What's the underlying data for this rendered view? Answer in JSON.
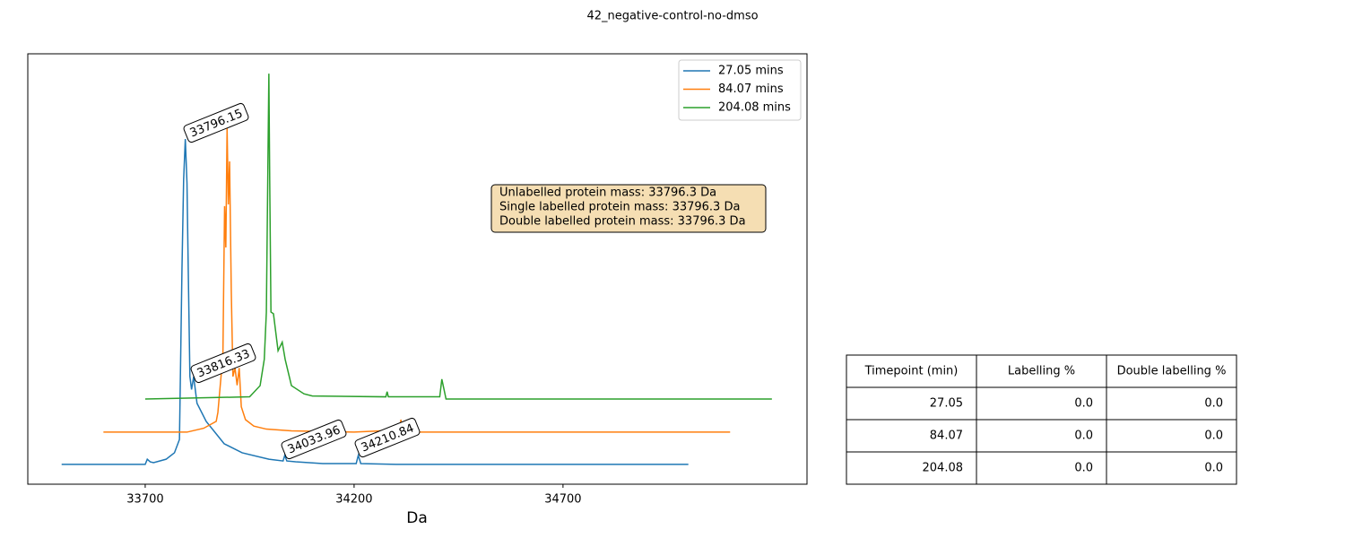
{
  "chart_data": {
    "type": "line",
    "title": "42_negative-control-no-dmso",
    "x_label": "Da",
    "xlim": [
      33419,
      35284
    ],
    "xticks": [
      33700,
      34200,
      34700
    ],
    "ylim": [
      0,
      100
    ],
    "legend": "upper right",
    "series": [
      {
        "name": "27.05 mins",
        "color": "#1f77b4",
        "x": [
          33500,
          33700,
          33705,
          33712,
          33720,
          33750,
          33770,
          33782,
          33788,
          33792,
          33796,
          33800,
          33803,
          33807,
          33811,
          33816,
          33824,
          33846,
          33889,
          33932,
          33996,
          34030,
          34034,
          34039,
          34060,
          34125,
          34205,
          34210,
          34216,
          34300,
          35000
        ],
        "values": [
          4.6,
          4.6,
          5.8,
          5.2,
          5.0,
          5.8,
          7.3,
          10.4,
          50,
          70.8,
          80.2,
          70,
          50,
          25,
          22,
          25,
          18.8,
          14.6,
          9.4,
          7.3,
          5.8,
          5.4,
          6.7,
          5.4,
          5.2,
          4.8,
          4.8,
          6.7,
          4.8,
          4.6,
          4.6
        ]
      },
      {
        "name": "84.07 mins",
        "color": "#ff7f0e",
        "x": [
          33600,
          33800,
          33840,
          33870,
          33874,
          33886,
          33890,
          33893,
          33896,
          33899,
          33902,
          33906,
          33910,
          33915,
          33920,
          33925,
          33930,
          33940,
          33960,
          33990,
          34050,
          34200,
          34310,
          34312,
          34315,
          35100
        ],
        "values": [
          12.1,
          12.1,
          13,
          14.6,
          16.7,
          30,
          64.6,
          55,
          82.7,
          65,
          75,
          45,
          25,
          27,
          23,
          27,
          18,
          15,
          13.5,
          12.8,
          12.4,
          12.1,
          12.6,
          15,
          12.1,
          12.1
        ]
      },
      {
        "name": "204.08 mins",
        "color": "#2ca02c",
        "x": [
          33700,
          33950,
          33975,
          33985,
          33990,
          33994,
          33996,
          33998,
          34001,
          34007,
          34018,
          34028,
          34035,
          34050,
          34080,
          34100,
          34276,
          34279,
          34282,
          34405,
          34410,
          34420,
          35200
        ],
        "values": [
          19.8,
          20.3,
          22.9,
          29,
          40,
          77,
          95.4,
          70.8,
          40,
          39.6,
          31,
          33,
          29,
          22.9,
          21,
          20.5,
          20.3,
          21.5,
          20.3,
          20.3,
          24.4,
          19.8,
          19.8
        ]
      }
    ],
    "peak_labels": [
      "33796.15",
      "33816.33",
      "34033.96",
      "34210.84"
    ],
    "info_box": [
      "Unlabelled protein mass: 33796.3 Da",
      "Single labelled protein mass: 33796.3 Da",
      "Double labelled protein mass: 33796.3 Da"
    ]
  },
  "table": {
    "header": [
      "Timepoint (min)",
      "Labelling %",
      "Double labelling %"
    ],
    "rows": [
      [
        "27.05",
        "0.0",
        "0.0"
      ],
      [
        "84.07",
        "0.0",
        "0.0"
      ],
      [
        "204.08",
        "0.0",
        "0.0"
      ]
    ]
  }
}
